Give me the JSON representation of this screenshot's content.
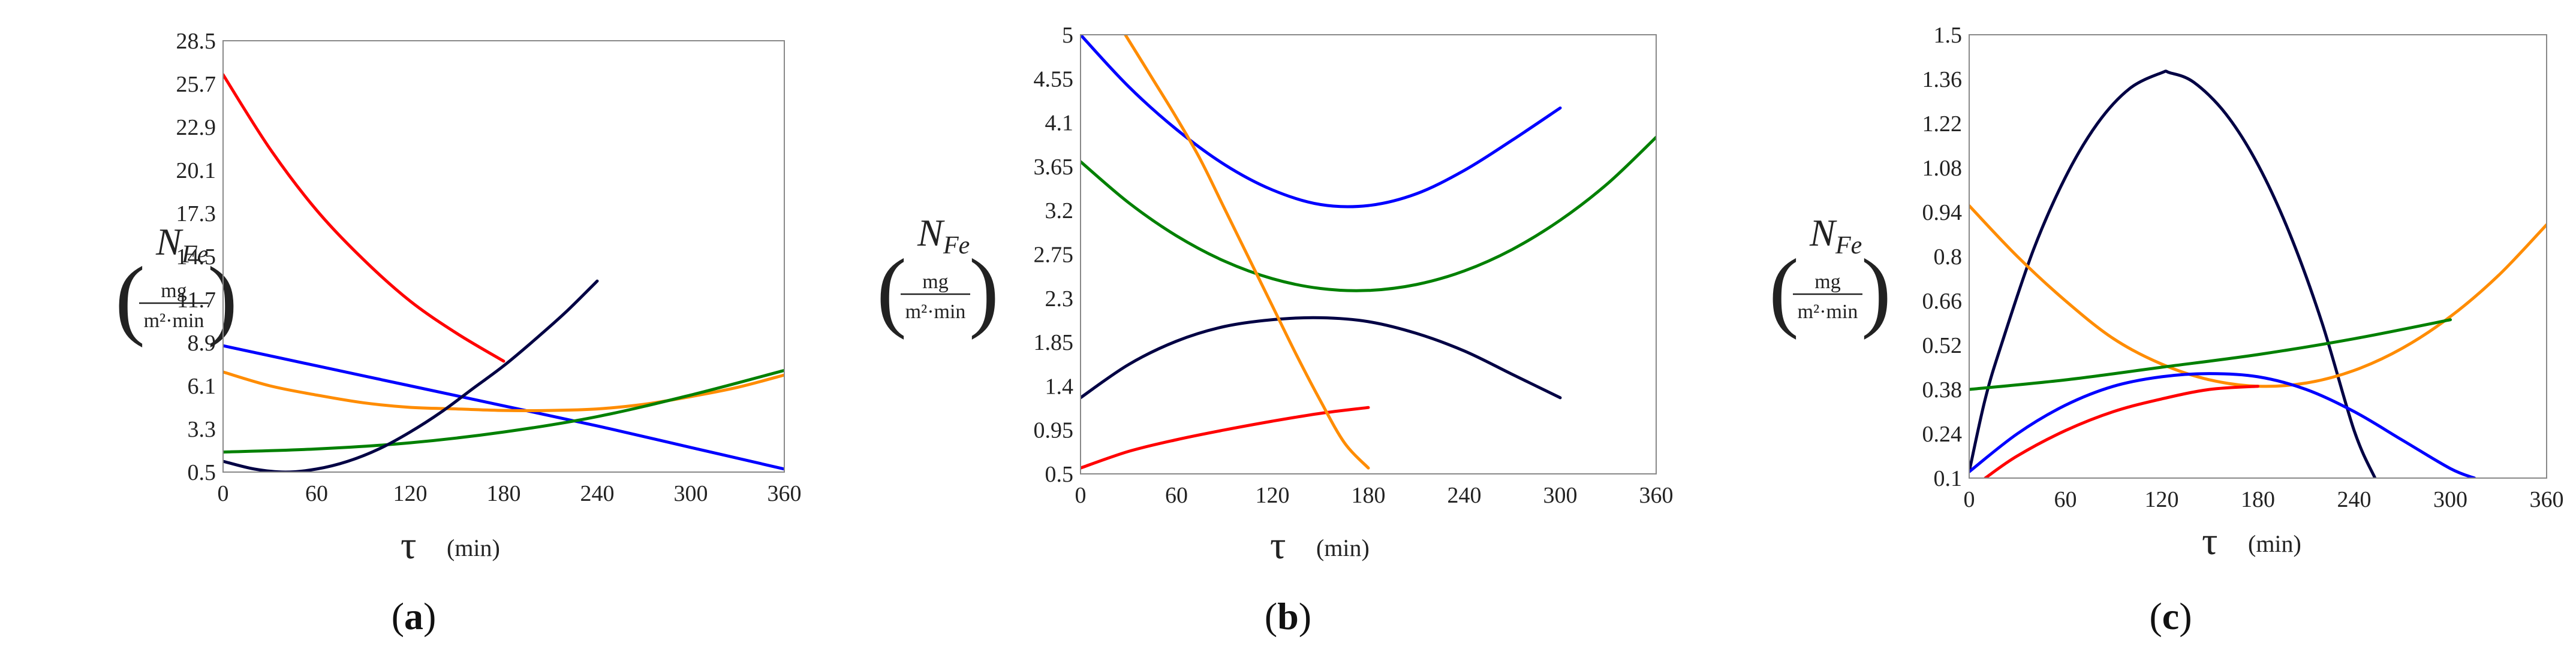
{
  "chart_data": [
    {
      "type": "line",
      "panel_label": "(a)",
      "panel_letter": "a",
      "ylabel_symbol": "N",
      "ylabel_subscript": "Fe",
      "ylabel_unit_numerator": "mg",
      "ylabel_unit_denominator": "m²·min",
      "xlabel_symbol": "τ",
      "xlabel_unit": "(min)",
      "xlim": [
        0,
        360
      ],
      "ylim": [
        0.5,
        28.5
      ],
      "xticks": [
        "0",
        "60",
        "120",
        "180",
        "240",
        "300",
        "360"
      ],
      "yticks": [
        {
          "value": 0.5,
          "label": "0.5"
        },
        {
          "value": 3.3,
          "label": "3.3"
        },
        {
          "value": 6.1,
          "label": "6.1"
        },
        {
          "value": 8.9,
          "label": "8.9"
        },
        {
          "value": 11.7,
          "label": "11.7"
        },
        {
          "value": 14.5,
          "label": "14.5"
        },
        {
          "value": 17.3,
          "label": "17.3"
        },
        {
          "value": 20.1,
          "label": "20.1"
        },
        {
          "value": 22.9,
          "label": "22.9"
        },
        {
          "value": 25.7,
          "label": "25.7"
        },
        {
          "value": 28.5,
          "label": "28.5"
        }
      ],
      "series": [
        {
          "color": "#ff0000",
          "x": [
            0,
            30,
            60,
            90,
            120,
            150,
            180
          ],
          "y": [
            26.3,
            21.5,
            17.5,
            14.3,
            11.6,
            9.5,
            7.7
          ]
        },
        {
          "color": "#0000ff",
          "x": [
            0,
            60,
            120,
            180,
            240,
            300,
            360
          ],
          "y": [
            8.7,
            7.4,
            6.1,
            4.8,
            3.5,
            2.1,
            0.7
          ]
        },
        {
          "color": "#ff8c00",
          "x": [
            0,
            30,
            60,
            90,
            120,
            150,
            180,
            210,
            240,
            270,
            300,
            330,
            360
          ],
          "y": [
            7.0,
            6.1,
            5.5,
            5.0,
            4.7,
            4.6,
            4.5,
            4.5,
            4.6,
            4.9,
            5.4,
            6.0,
            6.8
          ]
        },
        {
          "color": "#008000",
          "x": [
            0,
            60,
            120,
            180,
            240,
            300,
            360
          ],
          "y": [
            1.8,
            2.0,
            2.4,
            3.1,
            4.1,
            5.5,
            7.1
          ]
        },
        {
          "color": "#000044",
          "x": [
            0,
            20,
            40,
            60,
            80,
            100,
            120,
            140,
            160,
            180,
            200,
            220,
            240
          ],
          "y": [
            1.2,
            0.7,
            0.5,
            0.7,
            1.2,
            2.0,
            3.1,
            4.4,
            5.9,
            7.4,
            9.1,
            10.9,
            12.9
          ]
        }
      ]
    },
    {
      "type": "line",
      "panel_label": "(b)",
      "panel_letter": "b",
      "ylabel_symbol": "N",
      "ylabel_subscript": "Fe",
      "ylabel_unit_numerator": "mg",
      "ylabel_unit_denominator": "m²·min",
      "xlabel_symbol": "τ",
      "xlabel_unit": "(min)",
      "xlim": [
        0,
        360
      ],
      "ylim": [
        0.5,
        5
      ],
      "xticks": [
        "0",
        "60",
        "120",
        "180",
        "240",
        "300",
        "360"
      ],
      "yticks": [
        {
          "value": 0.5,
          "label": "0.5"
        },
        {
          "value": 0.95,
          "label": "0.95"
        },
        {
          "value": 1.4,
          "label": "1.4"
        },
        {
          "value": 1.85,
          "label": "1.85"
        },
        {
          "value": 2.3,
          "label": "2.3"
        },
        {
          "value": 2.75,
          "label": "2.75"
        },
        {
          "value": 3.2,
          "label": "3.2"
        },
        {
          "value": 3.65,
          "label": "3.65"
        },
        {
          "value": 4.1,
          "label": "4.1"
        },
        {
          "value": 4.55,
          "label": "4.55"
        },
        {
          "value": 5,
          "label": "5"
        }
      ],
      "series": [
        {
          "color": "#0000ff",
          "x": [
            0,
            30,
            60,
            90,
            120,
            150,
            180,
            210,
            240,
            270,
            300
          ],
          "y": [
            5.0,
            4.47,
            4.03,
            3.67,
            3.41,
            3.26,
            3.25,
            3.37,
            3.61,
            3.92,
            4.25
          ]
        },
        {
          "color": "#008000",
          "x": [
            0,
            30,
            60,
            90,
            120,
            150,
            180,
            210,
            240,
            270,
            300,
            330,
            360
          ],
          "y": [
            3.7,
            3.28,
            2.94,
            2.68,
            2.5,
            2.4,
            2.38,
            2.44,
            2.58,
            2.8,
            3.1,
            3.48,
            3.95
          ]
        },
        {
          "color": "#000044",
          "x": [
            0,
            30,
            60,
            90,
            120,
            150,
            180,
            210,
            240,
            270,
            300
          ],
          "y": [
            1.28,
            1.62,
            1.86,
            2.01,
            2.08,
            2.1,
            2.06,
            1.94,
            1.76,
            1.52,
            1.28
          ]
        },
        {
          "color": "#ff0000",
          "x": [
            0,
            30,
            60,
            90,
            120,
            150,
            180
          ],
          "y": [
            0.56,
            0.73,
            0.85,
            0.95,
            1.04,
            1.12,
            1.18
          ]
        },
        {
          "color": "#ff8c00",
          "x": [
            28,
            45,
            60,
            75,
            90,
            105,
            120,
            135,
            150,
            165,
            180
          ],
          "y": [
            5.0,
            4.55,
            4.15,
            3.72,
            3.22,
            2.72,
            2.22,
            1.72,
            1.25,
            0.82,
            0.56
          ]
        }
      ]
    },
    {
      "type": "line",
      "panel_label": "(c)",
      "panel_letter": "c",
      "ylabel_symbol": "N",
      "ylabel_subscript": "Fe",
      "ylabel_unit_numerator": "mg",
      "ylabel_unit_denominator": "m²·min",
      "xlabel_symbol": "τ",
      "xlabel_unit": "(min)",
      "xlim": [
        0,
        360
      ],
      "ylim": [
        0.1,
        1.5
      ],
      "xticks": [
        "0",
        "60",
        "120",
        "180",
        "240",
        "300",
        "360"
      ],
      "yticks": [
        {
          "value": 0.1,
          "label": "0.1"
        },
        {
          "value": 0.24,
          "label": "0.24"
        },
        {
          "value": 0.38,
          "label": "0.38"
        },
        {
          "value": 0.52,
          "label": "0.52"
        },
        {
          "value": 0.66,
          "label": "0.66"
        },
        {
          "value": 0.8,
          "label": "0.8"
        },
        {
          "value": 0.94,
          "label": "0.94"
        },
        {
          "value": 1.08,
          "label": "1.08"
        },
        {
          "value": 1.22,
          "label": "1.22"
        },
        {
          "value": 1.36,
          "label": "1.36"
        },
        {
          "value": 1.5,
          "label": "1.5"
        }
      ],
      "series": [
        {
          "color": "#000044",
          "x": [
            0,
            10,
            20,
            40,
            60,
            80,
            100,
            120,
            125,
            140,
            160,
            180,
            200,
            220,
            240,
            253
          ],
          "y": [
            0.12,
            0.35,
            0.52,
            0.82,
            1.05,
            1.22,
            1.33,
            1.38,
            1.38,
            1.35,
            1.25,
            1.09,
            0.87,
            0.59,
            0.25,
            0.1
          ]
        },
        {
          "color": "#ff8c00",
          "x": [
            0,
            30,
            60,
            90,
            120,
            150,
            180,
            210,
            240,
            270,
            300,
            330,
            360
          ],
          "y": [
            0.96,
            0.8,
            0.66,
            0.54,
            0.46,
            0.41,
            0.39,
            0.4,
            0.44,
            0.51,
            0.61,
            0.74,
            0.9
          ]
        },
        {
          "color": "#008000",
          "x": [
            0,
            60,
            120,
            180,
            240,
            300
          ],
          "y": [
            0.38,
            0.41,
            0.45,
            0.49,
            0.54,
            0.6
          ]
        },
        {
          "color": "#0000ff",
          "x": [
            0,
            30,
            60,
            90,
            120,
            150,
            180,
            210,
            240,
            270,
            300,
            315
          ],
          "y": [
            0.12,
            0.24,
            0.33,
            0.39,
            0.42,
            0.43,
            0.42,
            0.38,
            0.31,
            0.22,
            0.13,
            0.1
          ]
        },
        {
          "color": "#ff0000",
          "x": [
            10,
            30,
            60,
            90,
            120,
            150,
            180
          ],
          "y": [
            0.1,
            0.17,
            0.25,
            0.31,
            0.35,
            0.38,
            0.39
          ]
        }
      ]
    }
  ]
}
